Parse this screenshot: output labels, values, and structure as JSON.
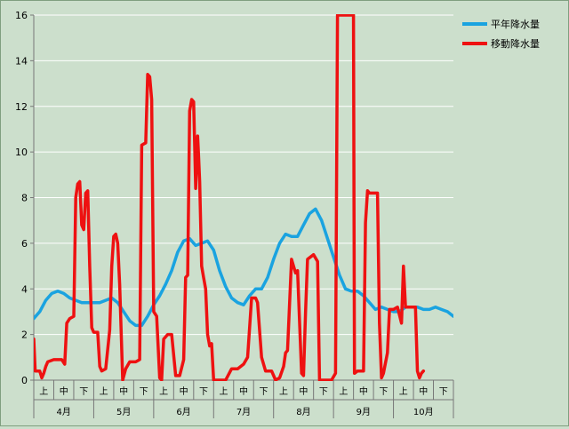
{
  "colors": {
    "background": "#ccdfcc",
    "normal": "#1aa3e0",
    "moving": "#ee1111",
    "axis": "#777777",
    "grid": "#ffffff"
  },
  "chart_data": {
    "type": "line",
    "ylim": [
      0,
      16
    ],
    "yticks": [
      0,
      2,
      4,
      6,
      8,
      10,
      12,
      14,
      16
    ],
    "x_sub_labels": [
      "上",
      "中",
      "下"
    ],
    "months": [
      "4月",
      "5月",
      "6月",
      "7月",
      "8月",
      "9月",
      "10月"
    ],
    "legend": [
      "平年降水量",
      "移動降水量"
    ],
    "x_range": [
      0,
      21
    ],
    "series": [
      {
        "name": "平年降水量",
        "points": [
          [
            0,
            2.7
          ],
          [
            0.3,
            3.0
          ],
          [
            0.6,
            3.5
          ],
          [
            0.9,
            3.8
          ],
          [
            1.2,
            3.9
          ],
          [
            1.5,
            3.8
          ],
          [
            1.8,
            3.6
          ],
          [
            2.1,
            3.5
          ],
          [
            2.4,
            3.4
          ],
          [
            2.7,
            3.4
          ],
          [
            3.0,
            3.4
          ],
          [
            3.3,
            3.4
          ],
          [
            3.6,
            3.5
          ],
          [
            3.9,
            3.6
          ],
          [
            4.2,
            3.4
          ],
          [
            4.5,
            3.0
          ],
          [
            4.8,
            2.6
          ],
          [
            5.1,
            2.4
          ],
          [
            5.4,
            2.4
          ],
          [
            5.7,
            2.8
          ],
          [
            6.0,
            3.3
          ],
          [
            6.3,
            3.7
          ],
          [
            6.6,
            4.2
          ],
          [
            6.9,
            4.8
          ],
          [
            7.2,
            5.6
          ],
          [
            7.5,
            6.1
          ],
          [
            7.8,
            6.2
          ],
          [
            8.1,
            5.9
          ],
          [
            8.4,
            6.0
          ],
          [
            8.7,
            6.1
          ],
          [
            9.0,
            5.7
          ],
          [
            9.3,
            4.8
          ],
          [
            9.6,
            4.1
          ],
          [
            9.9,
            3.6
          ],
          [
            10.2,
            3.4
          ],
          [
            10.5,
            3.3
          ],
          [
            10.8,
            3.7
          ],
          [
            11.1,
            4.0
          ],
          [
            11.4,
            4.0
          ],
          [
            11.7,
            4.5
          ],
          [
            12.0,
            5.3
          ],
          [
            12.3,
            6.0
          ],
          [
            12.6,
            6.4
          ],
          [
            12.9,
            6.3
          ],
          [
            13.2,
            6.3
          ],
          [
            13.5,
            6.8
          ],
          [
            13.8,
            7.3
          ],
          [
            14.1,
            7.5
          ],
          [
            14.4,
            7.0
          ],
          [
            14.7,
            6.2
          ],
          [
            15.0,
            5.4
          ],
          [
            15.3,
            4.6
          ],
          [
            15.6,
            4.0
          ],
          [
            15.9,
            3.9
          ],
          [
            16.2,
            3.9
          ],
          [
            16.5,
            3.7
          ],
          [
            16.8,
            3.4
          ],
          [
            17.1,
            3.1
          ],
          [
            17.4,
            3.2
          ],
          [
            17.7,
            3.1
          ],
          [
            18.0,
            3.0
          ],
          [
            18.3,
            3.0
          ],
          [
            18.6,
            3.2
          ],
          [
            18.9,
            3.2
          ],
          [
            19.2,
            3.2
          ],
          [
            19.5,
            3.1
          ],
          [
            19.8,
            3.1
          ],
          [
            20.1,
            3.2
          ],
          [
            20.4,
            3.1
          ],
          [
            20.7,
            3.0
          ],
          [
            21.0,
            2.8
          ]
        ]
      },
      {
        "name": "移動降水量",
        "points": [
          [
            0,
            1.8
          ],
          [
            0.07,
            0.4
          ],
          [
            0.3,
            0.4
          ],
          [
            0.4,
            0.1
          ],
          [
            0.5,
            0.3
          ],
          [
            0.6,
            0.6
          ],
          [
            0.7,
            0.8
          ],
          [
            1.0,
            0.9
          ],
          [
            1.4,
            0.9
          ],
          [
            1.55,
            0.7
          ],
          [
            1.65,
            2.5
          ],
          [
            1.8,
            2.7
          ],
          [
            2.0,
            2.8
          ],
          [
            2.1,
            8.0
          ],
          [
            2.2,
            8.6
          ],
          [
            2.3,
            8.7
          ],
          [
            2.4,
            6.8
          ],
          [
            2.5,
            6.6
          ],
          [
            2.6,
            8.2
          ],
          [
            2.7,
            8.3
          ],
          [
            2.8,
            5.0
          ],
          [
            2.9,
            2.3
          ],
          [
            3.0,
            2.1
          ],
          [
            3.2,
            2.1
          ],
          [
            3.3,
            0.6
          ],
          [
            3.4,
            0.4
          ],
          [
            3.6,
            0.5
          ],
          [
            3.8,
            2.2
          ],
          [
            3.9,
            5.0
          ],
          [
            4.0,
            6.3
          ],
          [
            4.1,
            6.4
          ],
          [
            4.2,
            6.0
          ],
          [
            4.3,
            4.2
          ],
          [
            4.45,
            0.0
          ],
          [
            4.6,
            0.5
          ],
          [
            4.8,
            0.8
          ],
          [
            5.1,
            0.8
          ],
          [
            5.3,
            0.9
          ],
          [
            5.4,
            10.3
          ],
          [
            5.6,
            10.4
          ],
          [
            5.7,
            13.4
          ],
          [
            5.8,
            13.3
          ],
          [
            5.9,
            12.3
          ],
          [
            6.0,
            3.0
          ],
          [
            6.15,
            2.8
          ],
          [
            6.3,
            0.1
          ],
          [
            6.4,
            0.0
          ],
          [
            6.5,
            1.8
          ],
          [
            6.7,
            2.0
          ],
          [
            6.9,
            2.0
          ],
          [
            7.1,
            0.2
          ],
          [
            7.3,
            0.2
          ],
          [
            7.5,
            0.9
          ],
          [
            7.6,
            4.5
          ],
          [
            7.7,
            4.6
          ],
          [
            7.8,
            11.8
          ],
          [
            7.9,
            12.3
          ],
          [
            8.0,
            12.2
          ],
          [
            8.1,
            8.4
          ],
          [
            8.2,
            10.7
          ],
          [
            8.25,
            9.8
          ],
          [
            8.3,
            8.7
          ],
          [
            8.4,
            5.0
          ],
          [
            8.5,
            4.5
          ],
          [
            8.6,
            4.0
          ],
          [
            8.7,
            2.0
          ],
          [
            8.8,
            1.5
          ],
          [
            8.9,
            1.6
          ],
          [
            9.0,
            0.0
          ],
          [
            9.3,
            0.0
          ],
          [
            9.6,
            0.0
          ],
          [
            9.9,
            0.5
          ],
          [
            10.2,
            0.5
          ],
          [
            10.5,
            0.7
          ],
          [
            10.7,
            1.0
          ],
          [
            10.9,
            3.6
          ],
          [
            11.1,
            3.6
          ],
          [
            11.2,
            3.4
          ],
          [
            11.4,
            1.0
          ],
          [
            11.6,
            0.4
          ],
          [
            11.9,
            0.4
          ],
          [
            12.1,
            0.0
          ],
          [
            12.3,
            0.1
          ],
          [
            12.5,
            0.6
          ],
          [
            12.6,
            1.2
          ],
          [
            12.7,
            1.3
          ],
          [
            12.9,
            5.3
          ],
          [
            13.1,
            4.7
          ],
          [
            13.2,
            4.8
          ],
          [
            13.4,
            0.3
          ],
          [
            13.5,
            0.2
          ],
          [
            13.6,
            3.0
          ],
          [
            13.7,
            5.3
          ],
          [
            14.0,
            5.5
          ],
          [
            14.2,
            5.2
          ],
          [
            14.3,
            0.0
          ],
          [
            14.5,
            0.0
          ],
          [
            14.9,
            0.0
          ],
          [
            15.1,
            0.3
          ],
          [
            15.2,
            16.0
          ],
          [
            15.3,
            16.0
          ],
          [
            15.4,
            16.0
          ],
          [
            15.6,
            16.0
          ],
          [
            15.8,
            16.0
          ],
          [
            16.0,
            16.0
          ],
          [
            16.05,
            0.3
          ],
          [
            16.2,
            0.4
          ],
          [
            16.5,
            0.4
          ],
          [
            16.6,
            6.9
          ],
          [
            16.7,
            8.3
          ],
          [
            16.8,
            8.2
          ],
          [
            17.0,
            8.2
          ],
          [
            17.2,
            8.2
          ],
          [
            17.3,
            2.5
          ],
          [
            17.4,
            0.1
          ],
          [
            17.5,
            0.3
          ],
          [
            17.7,
            1.2
          ],
          [
            17.8,
            3.1
          ],
          [
            18.0,
            3.1
          ],
          [
            18.2,
            3.2
          ],
          [
            18.4,
            2.5
          ],
          [
            18.5,
            5.0
          ],
          [
            18.6,
            3.2
          ],
          [
            18.9,
            3.2
          ],
          [
            19.1,
            3.2
          ],
          [
            19.2,
            0.4
          ],
          [
            19.3,
            0.1
          ],
          [
            19.4,
            0.3
          ],
          [
            19.5,
            0.4
          ]
        ]
      }
    ]
  }
}
